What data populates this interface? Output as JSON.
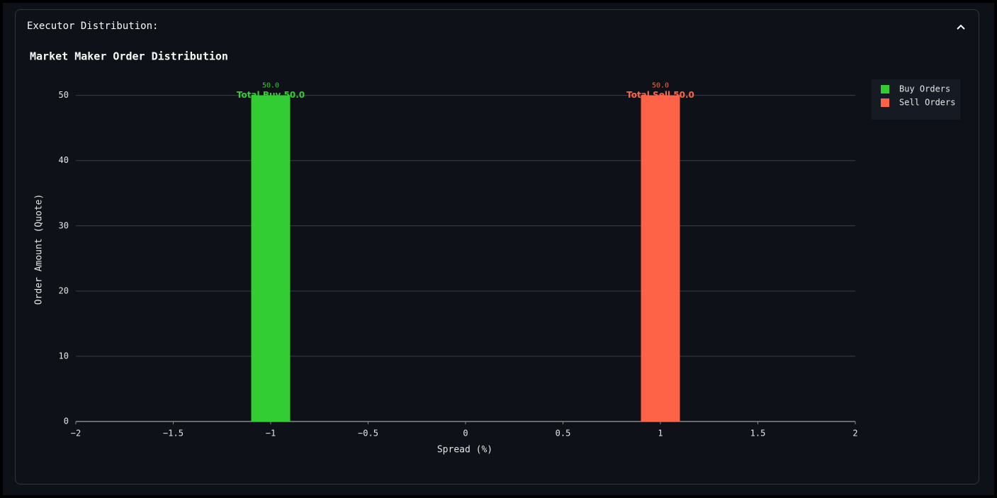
{
  "panel": {
    "title": "Executor Distribution:"
  },
  "chart_data": {
    "type": "bar",
    "title": "Market Maker Order Distribution",
    "x_label": "Spread (%)",
    "y_label": "Order Amount (Quote)",
    "xlim": [
      -2,
      2
    ],
    "xticks": [
      {
        "value": -2,
        "label": "−2"
      },
      {
        "value": -1.5,
        "label": "−1.5"
      },
      {
        "value": -1,
        "label": "−1"
      },
      {
        "value": -0.5,
        "label": "−0.5"
      },
      0,
      0.5,
      1,
      1.5,
      2
    ],
    "ylim": [
      0,
      53
    ],
    "yticks": [
      0,
      10,
      20,
      30,
      40,
      50
    ],
    "grid": true,
    "legend": "top-right",
    "series": [
      {
        "name": "Buy Orders",
        "color": "#32cd32",
        "x": [
          -1
        ],
        "values": [
          50
        ],
        "value_labels": [
          "50.0"
        ],
        "total_label": "Total Buy 50.0"
      },
      {
        "name": "Sell Orders",
        "color": "#ff6347",
        "x": [
          1
        ],
        "values": [
          50
        ],
        "value_labels": [
          "50.0"
        ],
        "total_label": "Total Sell 50.0"
      }
    ]
  }
}
